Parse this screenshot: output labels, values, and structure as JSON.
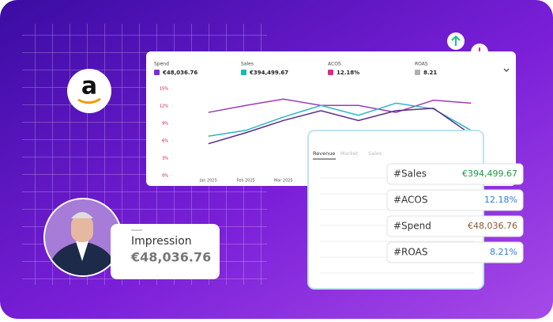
{
  "metrics": [
    {
      "label": "Spend",
      "value": "€48,036.76",
      "color": "#7b2fd0"
    },
    {
      "label": "Sales",
      "value": "€394,499.67",
      "color": "#1fb8b0"
    },
    {
      "label": "ACOS",
      "value": "12.18%",
      "color": "#d92d8a"
    },
    {
      "label": "ROAS",
      "value": "8.21",
      "color": "#b0b0b0"
    }
  ],
  "chart_data": {
    "type": "line",
    "categories": [
      "Jan 2025",
      "Feb 2025",
      "Mar 2025",
      null,
      null,
      null,
      null,
      null
    ],
    "series": [
      {
        "color": "#9b3bb5",
        "values": [
          10.9,
          12.1,
          13.2,
          12.1,
          12.1,
          10.9,
          13.0,
          12.5
        ]
      },
      {
        "color": "#2bb5c0",
        "values": [
          6.8,
          7.8,
          10.1,
          12.1,
          10.4,
          12.5,
          11.5,
          7.8
        ]
      },
      {
        "color": "#5b2a86",
        "values": [
          5.5,
          7.4,
          9.5,
          11.2,
          9.5,
          11.2,
          11.6,
          7.1
        ]
      }
    ],
    "ylim": [
      0,
      15
    ],
    "yticks": [
      {
        "value": 0,
        "label": "0%"
      },
      {
        "value": 3,
        "label": "3%"
      },
      {
        "value": 6,
        "label": "6%"
      },
      {
        "value": 9,
        "label": "9%"
      },
      {
        "value": 12,
        "label": "12%"
      },
      {
        "value": 15,
        "label": "15%"
      }
    ],
    "grid": false
  },
  "panel": {
    "tabs": [
      "Revenue",
      "Market",
      "Sales"
    ],
    "rows": [
      {
        "label": "#Sales",
        "value": "€394,499.67",
        "color": "#1c9c3c"
      },
      {
        "label": "#ACOS",
        "value": "12.18%",
        "color": "#2b7fd8"
      },
      {
        "label": "#Spend",
        "value": "€48,036.76",
        "color": "#8a5a2a"
      },
      {
        "label": "#ROAS",
        "value": "8.21%",
        "color": "#2b7fd8"
      }
    ]
  },
  "impression": {
    "label": "Impression",
    "value": "€48,036.76"
  }
}
